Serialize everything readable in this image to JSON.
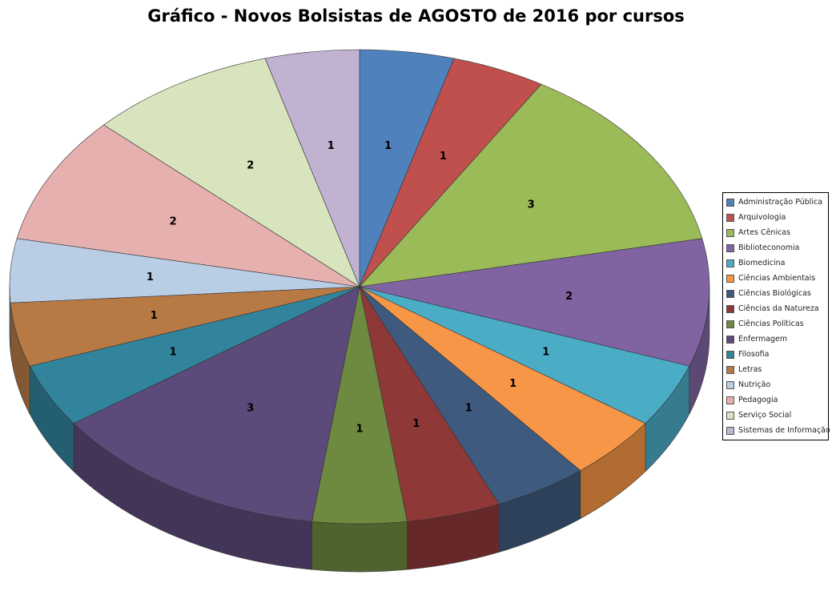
{
  "chart_data": {
    "type": "pie",
    "title": "Gráfico - Novos Bolsistas de AGOSTO de 2016 por cursos",
    "legend_position": "right",
    "three_d": true,
    "categories": [
      "Administração Pública",
      "Arquivologia",
      "Artes Cênicas",
      "Biblioteconomia",
      "Biomedicina",
      "Ciências Ambientais",
      "Ciências Biológicas",
      "Ciências da Natureza",
      "Ciências Políticas",
      "Enfermagem",
      "Filosofia",
      "Letras",
      "Nutrição",
      "Pedagogia",
      "Serviço Social",
      "Sistemas de Informação"
    ],
    "values": [
      1,
      1,
      3,
      2,
      1,
      1,
      1,
      1,
      1,
      3,
      1,
      1,
      1,
      2,
      2,
      1
    ],
    "colors": [
      "#4F81BD",
      "#C0504D",
      "#9BBB59",
      "#8064A2",
      "#4BACC6",
      "#F79646",
      "#3E5A7F",
      "#8E3838",
      "#6E8A40",
      "#5C4A7A",
      "#31849B",
      "#B87A45",
      "#B9CDE5",
      "#E6B0AF",
      "#D7E4BD",
      "#C0B2D0"
    ]
  }
}
